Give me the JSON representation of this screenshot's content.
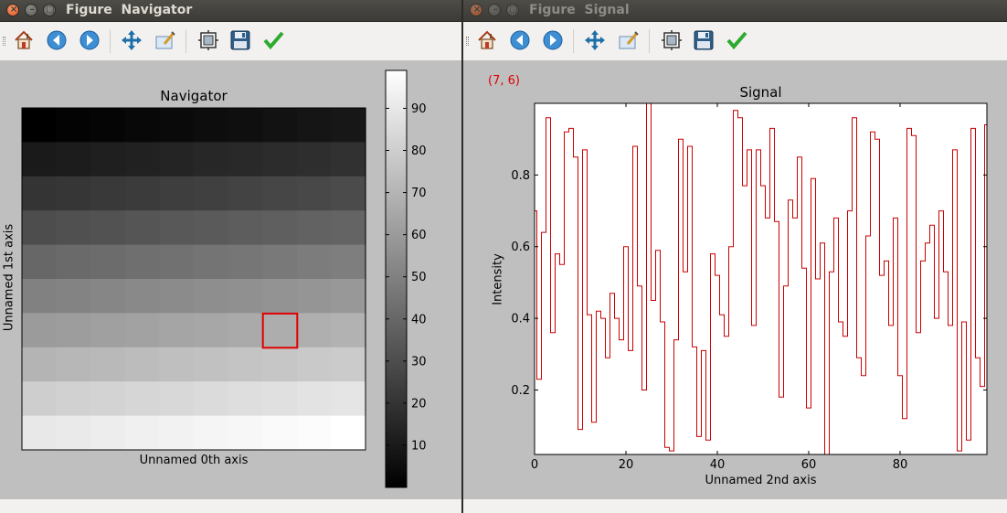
{
  "left_window": {
    "title": "Figure  Navigator",
    "axes_title": "Navigator",
    "xlabel": "Unnamed 0th axis",
    "ylabel": "Unnamed 1st axis",
    "colorbar_ticks": [
      "10",
      "20",
      "30",
      "40",
      "50",
      "60",
      "70",
      "80",
      "90"
    ],
    "toolbar": [
      "home-icon",
      "back-icon",
      "forward-icon",
      "pan-icon",
      "zoom-icon",
      "subplots-icon",
      "save-icon",
      "edit-icon"
    ]
  },
  "right_window": {
    "title": "Figure  Signal",
    "coord_readout": "(7, 6)",
    "toolbar": [
      "home-icon",
      "back-icon",
      "forward-icon",
      "pan-icon",
      "zoom-icon",
      "subplots-icon",
      "save-icon",
      "edit-icon"
    ]
  },
  "colors": {
    "title_bar": "#3c3b37",
    "canvas": "#bfbfbf",
    "signal_line": "#cc0000",
    "marker": "#e00000",
    "readout": "#e00000"
  },
  "chart_data": [
    {
      "type": "heatmap",
      "title": "Navigator",
      "xlabel": "Unnamed 0th axis",
      "ylabel": "Unnamed 1st axis",
      "colormap": "gray",
      "rows": 10,
      "cols": 10,
      "values": [
        [
          0,
          1,
          2,
          3,
          4,
          5,
          6,
          7,
          8,
          9
        ],
        [
          10,
          11,
          12,
          13,
          14,
          15,
          16,
          17,
          18,
          19
        ],
        [
          20,
          21,
          22,
          23,
          24,
          25,
          26,
          27,
          28,
          29
        ],
        [
          30,
          31,
          32,
          33,
          34,
          35,
          36,
          37,
          38,
          39
        ],
        [
          40,
          41,
          42,
          43,
          44,
          45,
          46,
          47,
          48,
          49
        ],
        [
          50,
          51,
          52,
          53,
          54,
          55,
          56,
          57,
          58,
          59
        ],
        [
          60,
          61,
          62,
          63,
          64,
          65,
          66,
          67,
          68,
          69
        ],
        [
          70,
          71,
          72,
          73,
          74,
          75,
          76,
          77,
          78,
          79
        ],
        [
          80,
          81,
          82,
          83,
          84,
          85,
          86,
          87,
          88,
          89
        ],
        [
          90,
          91,
          92,
          93,
          94,
          95,
          96,
          97,
          98,
          99
        ]
      ],
      "colorbar_range": [
        0,
        99
      ],
      "colorbar_ticks": [
        10,
        20,
        30,
        40,
        50,
        60,
        70,
        80,
        90
      ],
      "selected_cell": [
        7,
        6
      ],
      "ticks_shown": false
    },
    {
      "type": "line",
      "style": "steps-mid",
      "title": "Signal",
      "xlabel": "Unnamed 2nd axis",
      "ylabel": "Intensity",
      "xlim": [
        0,
        99
      ],
      "ylim": [
        0.02,
        1.0
      ],
      "xticks": [
        0,
        20,
        40,
        60,
        80
      ],
      "yticks": [
        0.2,
        0.4,
        0.6,
        0.8
      ],
      "xtick_labels": [
        "0",
        "20",
        "40",
        "60",
        "80"
      ],
      "ytick_labels": [
        "0.2",
        "0.4",
        "0.6",
        "0.8"
      ],
      "grid": false,
      "x": [
        0,
        1,
        2,
        3,
        4,
        5,
        6,
        7,
        8,
        9,
        10,
        11,
        12,
        13,
        14,
        15,
        16,
        17,
        18,
        19,
        20,
        21,
        22,
        23,
        24,
        25,
        26,
        27,
        28,
        29,
        30,
        31,
        32,
        33,
        34,
        35,
        36,
        37,
        38,
        39,
        40,
        41,
        42,
        43,
        44,
        45,
        46,
        47,
        48,
        49,
        50,
        51,
        52,
        53,
        54,
        55,
        56,
        57,
        58,
        59,
        60,
        61,
        62,
        63,
        64,
        65,
        66,
        67,
        68,
        69,
        70,
        71,
        72,
        73,
        74,
        75,
        76,
        77,
        78,
        79,
        80,
        81,
        82,
        83,
        84,
        85,
        86,
        87,
        88,
        89,
        90,
        91,
        92,
        93,
        94,
        95,
        96,
        97,
        98,
        99
      ],
      "values": [
        0.7,
        0.23,
        0.64,
        0.96,
        0.36,
        0.58,
        0.55,
        0.92,
        0.93,
        0.85,
        0.09,
        0.87,
        0.41,
        0.11,
        0.42,
        0.4,
        0.29,
        0.47,
        0.4,
        0.34,
        0.6,
        0.31,
        0.88,
        0.49,
        0.2,
        1.0,
        0.45,
        0.59,
        0.39,
        0.04,
        0.03,
        0.34,
        0.9,
        0.53,
        0.88,
        0.32,
        0.07,
        0.31,
        0.06,
        0.58,
        0.52,
        0.41,
        0.35,
        0.6,
        0.98,
        0.96,
        0.77,
        0.87,
        0.38,
        0.87,
        0.77,
        0.68,
        0.93,
        0.67,
        0.18,
        0.49,
        0.73,
        0.68,
        0.85,
        0.54,
        0.15,
        0.79,
        0.51,
        0.61,
        0.02,
        0.53,
        0.68,
        0.39,
        0.35,
        0.7,
        0.96,
        0.29,
        0.24,
        0.63,
        0.92,
        0.9,
        0.52,
        0.56,
        0.38,
        0.68,
        0.24,
        0.12,
        0.93,
        0.91,
        0.36,
        0.56,
        0.61,
        0.66,
        0.4,
        0.7,
        0.53,
        0.38,
        0.87,
        0.03,
        0.39,
        0.06,
        0.93,
        0.29,
        0.21,
        0.94
      ]
    }
  ]
}
